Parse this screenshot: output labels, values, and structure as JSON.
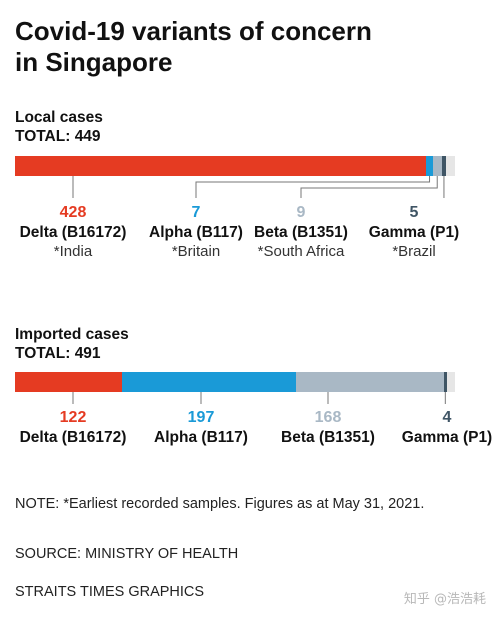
{
  "title_lines": [
    "Covid-19 variants of concern",
    "in Singapore"
  ],
  "colors": {
    "delta": "#e53b22",
    "alpha": "#1a9ad7",
    "beta": "#a9b8c5",
    "gamma": "#3f5565",
    "track": "#e6e6e6"
  },
  "local": {
    "heading": "Local cases",
    "total_label": "TOTAL: 449",
    "items": [
      {
        "value": "428",
        "name": "Delta (B16172)",
        "origin": "*India"
      },
      {
        "value": "7",
        "name": "Alpha (B117)",
        "origin": "*Britain"
      },
      {
        "value": "9",
        "name": "Beta (B1351)",
        "origin": "*South Africa"
      },
      {
        "value": "5",
        "name": "Gamma (P1)",
        "origin": "*Brazil"
      }
    ]
  },
  "imported": {
    "heading": "Imported cases",
    "total_label": "TOTAL: 491",
    "items": [
      {
        "value": "122",
        "name": "Delta (B16172)"
      },
      {
        "value": "197",
        "name": "Alpha (B117)"
      },
      {
        "value": "168",
        "name": "Beta (B1351)"
      },
      {
        "value": "4",
        "name": "Gamma (P1)"
      }
    ]
  },
  "note": "NOTE: *Earliest recorded samples. Figures as at May 31, 2021.",
  "source": "SOURCE: MINISTRY OF HEALTH",
  "credit": "STRAITS TIMES GRAPHICS",
  "watermark": "知乎 @浩浩耗",
  "chart_data": [
    {
      "type": "bar",
      "orientation": "horizontal-stacked",
      "title": "Local cases",
      "subtitle": "TOTAL: 449",
      "categories": [
        "Delta (B16172)",
        "Alpha (B117)",
        "Beta (B1351)",
        "Gamma (P1)"
      ],
      "values": [
        428,
        7,
        9,
        5
      ],
      "total": 449
    },
    {
      "type": "bar",
      "orientation": "horizontal-stacked",
      "title": "Imported cases",
      "subtitle": "TOTAL: 491",
      "categories": [
        "Delta (B16172)",
        "Alpha (B117)",
        "Beta (B1351)",
        "Gamma (P1)"
      ],
      "values": [
        122,
        197,
        168,
        4
      ],
      "total": 491
    }
  ]
}
